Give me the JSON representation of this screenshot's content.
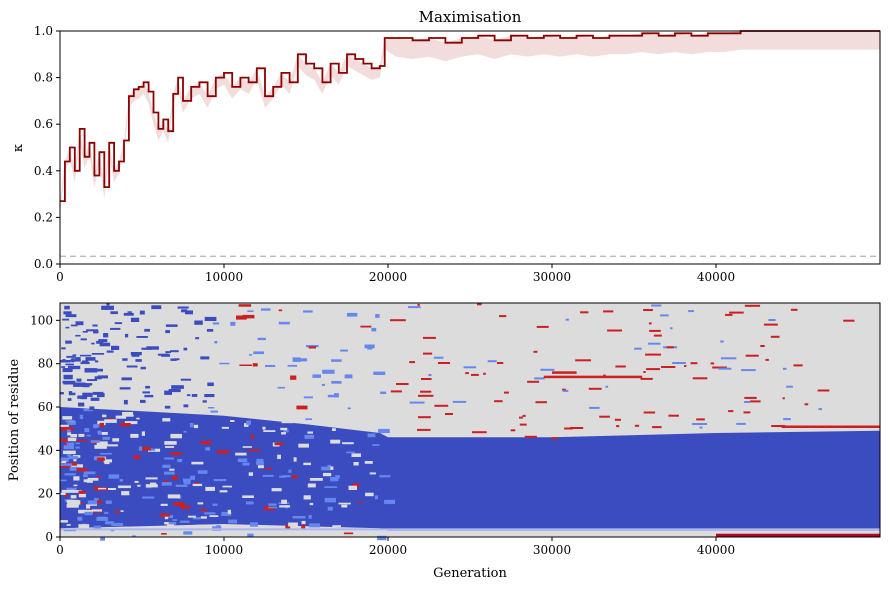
{
  "chart_data": [
    {
      "type": "line",
      "title": "Maximisation",
      "xlabel": "",
      "ylabel": "κ",
      "xlim": [
        0,
        50000
      ],
      "ylim": [
        0.0,
        1.0
      ],
      "xticks": [
        0,
        10000,
        20000,
        30000,
        40000
      ],
      "yticks": [
        0.0,
        0.2,
        0.4,
        0.6,
        0.8,
        1.0
      ],
      "ytick_labels": [
        "0.0",
        "0.2",
        "0.4",
        "0.6",
        "0.8",
        "1.0"
      ],
      "reference_line": {
        "y": 0.033,
        "style": "dashed",
        "color": "#bbbbbb"
      },
      "series": [
        {
          "color": "#8b0000",
          "x": [
            0,
            300,
            600,
            900,
            1200,
            1500,
            1800,
            2100,
            2400,
            2700,
            3000,
            3300,
            3600,
            3900,
            4200,
            4500,
            4800,
            5100,
            5400,
            5700,
            6000,
            6300,
            6600,
            6900,
            7200,
            7500,
            8000,
            8500,
            9000,
            9500,
            10000,
            10500,
            11000,
            11500,
            12000,
            12500,
            13000,
            13500,
            14000,
            14500,
            15000,
            15500,
            16000,
            16500,
            17000,
            17500,
            18000,
            18500,
            19000,
            19500,
            19800,
            20500,
            21500,
            22500,
            23500,
            24500,
            25500,
            26500,
            27500,
            28500,
            29500,
            30500,
            31500,
            32500,
            33500,
            34500,
            35500,
            36500,
            37500,
            38500,
            39500,
            40500,
            41500,
            42500,
            44000,
            46000,
            48000,
            50000
          ],
          "y": [
            0.27,
            0.44,
            0.5,
            0.4,
            0.58,
            0.46,
            0.52,
            0.38,
            0.48,
            0.33,
            0.52,
            0.4,
            0.44,
            0.53,
            0.72,
            0.75,
            0.76,
            0.78,
            0.74,
            0.65,
            0.58,
            0.62,
            0.57,
            0.73,
            0.8,
            0.7,
            0.76,
            0.78,
            0.72,
            0.8,
            0.82,
            0.76,
            0.8,
            0.78,
            0.84,
            0.72,
            0.76,
            0.82,
            0.78,
            0.9,
            0.86,
            0.84,
            0.78,
            0.86,
            0.82,
            0.9,
            0.88,
            0.86,
            0.84,
            0.85,
            0.97,
            0.97,
            0.96,
            0.97,
            0.95,
            0.97,
            0.98,
            0.96,
            0.98,
            0.97,
            0.98,
            0.97,
            0.98,
            0.97,
            0.98,
            0.98,
            0.99,
            0.98,
            0.99,
            0.98,
            0.99,
            0.99,
            1.0,
            1.0,
            1.0,
            1.0,
            1.0,
            1.0
          ]
        }
      ]
    },
    {
      "type": "heatmap",
      "xlabel": "Generation",
      "ylabel": "Position of residue",
      "xlim": [
        0,
        50000
      ],
      "ylim": [
        0,
        108
      ],
      "xticks": [
        0,
        10000,
        20000,
        30000,
        40000
      ],
      "yticks": [
        0,
        20,
        40,
        60,
        80,
        100
      ],
      "colors": {
        "background": "#dcdcdc",
        "blue": "#3a4cc0",
        "light_blue": "#6688ee",
        "red": "#cc1f1f",
        "dark_red": "#b40426"
      },
      "blue_band": {
        "x": [
          0,
          5000,
          10000,
          15000,
          19500,
          20000,
          30000,
          40000,
          50000
        ],
        "y_low": [
          4,
          5,
          6,
          5,
          4,
          3,
          3,
          3,
          3
        ],
        "y_high": [
          60,
          58,
          56,
          52,
          48,
          46,
          46,
          48,
          49
        ]
      },
      "red_features": [
        {
          "x": [
            44000,
            50000
          ],
          "y": 51
        },
        {
          "x": [
            40000,
            50000
          ],
          "y": 1
        },
        {
          "x": [
            29500,
            35500
          ],
          "y": 74
        },
        {
          "x": [
            30000,
            31500
          ],
          "y": 76
        }
      ]
    }
  ]
}
